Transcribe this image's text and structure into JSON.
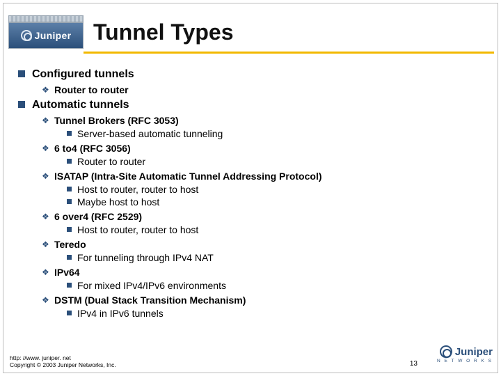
{
  "brand": {
    "name": "Juniper",
    "subline": "N E T W O R K S",
    "colors": {
      "blue": "#2b4f7a",
      "blue_light": "#5c7fa8",
      "yellow": "#f2b800",
      "border": "#bdbdbd"
    }
  },
  "title": "Tunnel Types",
  "content": {
    "lvl1_1": "Configured tunnels",
    "lvl2_1_1": "Router to router",
    "lvl1_2": "Automatic tunnels",
    "lvl2_2_1": "Tunnel Brokers (RFC 3053)",
    "lvl3_2_1_1": "Server-based automatic tunneling",
    "lvl2_2_2": "6 to4 (RFC 3056)",
    "lvl3_2_2_1": "Router to router",
    "lvl2_2_3": "ISATAP (Intra-Site Automatic Tunnel Addressing Protocol)",
    "lvl3_2_3_1": "Host to router, router to host",
    "lvl3_2_3_2": "Maybe host to host",
    "lvl2_2_4": "6 over4 (RFC 2529)",
    "lvl3_2_4_1": "Host to router, router to host",
    "lvl2_2_5": "Teredo",
    "lvl3_2_5_1": "For tunneling through IPv4 NAT",
    "lvl2_2_6": "IPv64",
    "lvl3_2_6_1": "For mixed IPv4/IPv6 environments",
    "lvl2_2_7": "DSTM (Dual Stack Transition Mechanism)",
    "lvl3_2_7_1": "IPv4 in IPv6 tunnels"
  },
  "footer": {
    "url": "http: //www. juniper. net",
    "copyright": "Copyright © 2003 Juniper Networks, Inc.",
    "page": "13"
  }
}
